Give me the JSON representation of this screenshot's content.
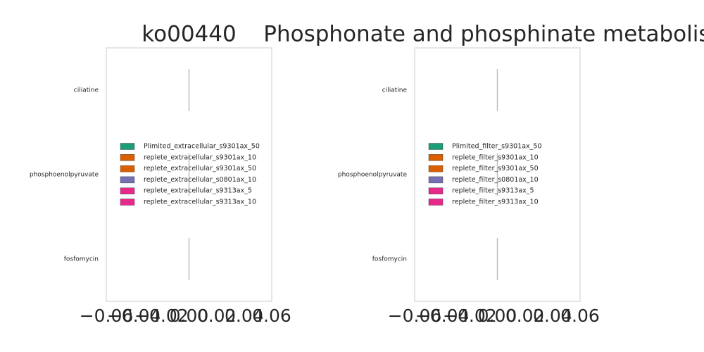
{
  "chart_data": [
    {
      "type": "bar",
      "orientation": "horizontal",
      "title": "ko00440",
      "categories": [
        "ciliatine",
        "phosphoenolpyruvate",
        "fosfomycin"
      ],
      "series": [
        {
          "name": "Plimited_extracellular_s9301ax_50",
          "color": "#1b9e77",
          "values": [
            0,
            0,
            0
          ]
        },
        {
          "name": "replete_extracellular_s9301ax_10",
          "color": "#d95f02",
          "values": [
            0,
            0,
            0
          ]
        },
        {
          "name": "replete_extracellular_s9301ax_50",
          "color": "#d95f02",
          "values": [
            0,
            0,
            0
          ]
        },
        {
          "name": "replete_extracellular_s0801ax_10",
          "color": "#7570b3",
          "values": [
            0,
            0,
            0
          ]
        },
        {
          "name": "replete_extracellular_s9313ax_5",
          "color": "#e7298a",
          "values": [
            0,
            0,
            0
          ]
        },
        {
          "name": "replete_extracellular_s9313ax_10",
          "color": "#e7298a",
          "values": [
            0,
            0,
            0
          ]
        }
      ],
      "xlim": [
        -0.06,
        0.06
      ],
      "xticks": [
        {
          "value": -0.06,
          "label": "−0.06"
        },
        {
          "value": -0.04,
          "label": "−0.04"
        },
        {
          "value": -0.02,
          "label": "−0.02"
        },
        {
          "value": 0,
          "label": "0.00"
        },
        0.02,
        0.04,
        0.06
      ],
      "grid": false,
      "legend": "center"
    },
    {
      "type": "bar",
      "orientation": "horizontal",
      "title": "Phosphonate and phosphinate metabolism",
      "categories": [
        "ciliatine",
        "phosphoenolpyruvate",
        "fosfomycin"
      ],
      "series": [
        {
          "name": "Plimited_filter_s9301ax_50",
          "color": "#1b9e77",
          "values": [
            0,
            0,
            0
          ]
        },
        {
          "name": "replete_filter_s9301ax_10",
          "color": "#d95f02",
          "values": [
            0,
            0,
            0
          ]
        },
        {
          "name": "replete_filter_s9301ax_50",
          "color": "#d95f02",
          "values": [
            0,
            0,
            0
          ]
        },
        {
          "name": "replete_filter_s0801ax_10",
          "color": "#7570b3",
          "values": [
            0,
            0,
            0
          ]
        },
        {
          "name": "replete_filter_s9313ax_5",
          "color": "#e7298a",
          "values": [
            0,
            0,
            0
          ]
        },
        {
          "name": "replete_filter_s9313ax_10",
          "color": "#e7298a",
          "values": [
            0,
            0,
            0
          ]
        }
      ],
      "xlim": [
        -0.06,
        0.06
      ],
      "xticks": [
        {
          "value": -0.06,
          "label": "−0.06"
        },
        {
          "value": -0.04,
          "label": "−0.04"
        },
        {
          "value": -0.02,
          "label": "−0.02"
        },
        {
          "value": 0,
          "label": "0.00"
        },
        0.02,
        0.04,
        0.06
      ],
      "grid": false,
      "legend": "center"
    }
  ]
}
